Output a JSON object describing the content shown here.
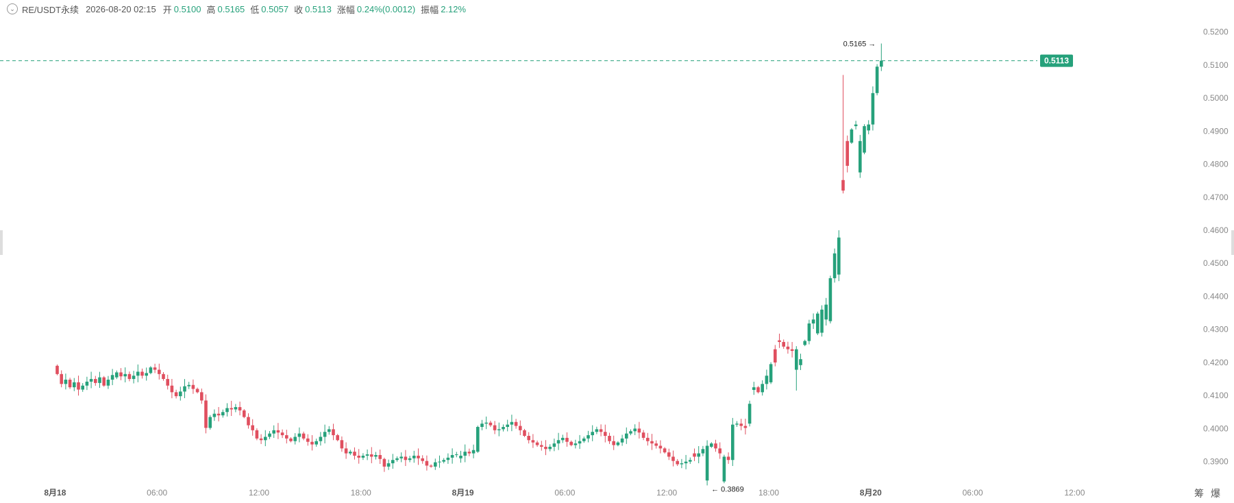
{
  "header": {
    "symbol": "RE/USDT永续",
    "datetime": "2026-08-20 02:15",
    "open_label": "开",
    "open": "0.5100",
    "high_label": "高",
    "high": "0.5165",
    "low_label": "低",
    "low": "0.5057",
    "close_label": "收",
    "close": "0.5113",
    "change_label": "涨幅",
    "change": "0.24%(0.0012)",
    "amplitude_label": "振幅",
    "amplitude": "2.12%"
  },
  "colors": {
    "up": "#26a17b",
    "down": "#e04f5f",
    "text": "#333333",
    "axis": "#888888"
  },
  "footer_icons": [
    "筹",
    "爆"
  ],
  "chart_data": {
    "type": "candlestick",
    "interval": "15m",
    "y_ticks": [
      "0.3900",
      "0.4000",
      "0.4100",
      "0.4200",
      "0.4300",
      "0.4400",
      "0.4500",
      "0.4600",
      "0.4700",
      "0.4800",
      "0.4900",
      "0.5000",
      "0.5100",
      "0.5200"
    ],
    "ylim": [
      0.3835,
      0.5222
    ],
    "x_ticks": [
      {
        "label": "8月18",
        "bold": true,
        "index": 0
      },
      {
        "label": "06:00",
        "bold": false,
        "index": 24
      },
      {
        "label": "12:00",
        "bold": false,
        "index": 48
      },
      {
        "label": "18:00",
        "bold": false,
        "index": 72
      },
      {
        "label": "8月19",
        "bold": true,
        "index": 96
      },
      {
        "label": "06:00",
        "bold": false,
        "index": 120
      },
      {
        "label": "12:00",
        "bold": false,
        "index": 144
      },
      {
        "label": "18:00",
        "bold": false,
        "index": 168
      },
      {
        "label": "8月20",
        "bold": true,
        "index": 192
      },
      {
        "label": "06:00",
        "bold": false,
        "index": 216
      },
      {
        "label": "12:00",
        "bold": false,
        "index": 240
      }
    ],
    "first_candle_index": -12,
    "current_price": "0.5113",
    "high_marker": "0.5165",
    "low_marker": "0.3869",
    "closes": [
      0.4165,
      0.4135,
      0.4148,
      0.4125,
      0.414,
      0.4118,
      0.413,
      0.4142,
      0.415,
      0.4138,
      0.4155,
      0.413,
      0.4148,
      0.4162,
      0.417,
      0.4158,
      0.4165,
      0.415,
      0.416,
      0.4172,
      0.416,
      0.4168,
      0.4185,
      0.4178,
      0.4165,
      0.415,
      0.413,
      0.411,
      0.4098,
      0.4112,
      0.4128,
      0.4132,
      0.412,
      0.411,
      0.4085,
      0.4002,
      0.4035,
      0.4045,
      0.404,
      0.405,
      0.4062,
      0.4058,
      0.4065,
      0.4055,
      0.4035,
      0.401,
      0.3995,
      0.397,
      0.3965,
      0.3975,
      0.3985,
      0.3995,
      0.3988,
      0.398,
      0.397,
      0.3962,
      0.3975,
      0.3985,
      0.397,
      0.396,
      0.3952,
      0.3962,
      0.3975,
      0.399,
      0.3998,
      0.398,
      0.3965,
      0.394,
      0.3925,
      0.393,
      0.3918,
      0.3912,
      0.3918,
      0.3922,
      0.3915,
      0.392,
      0.3908,
      0.3885,
      0.3895,
      0.3905,
      0.391,
      0.3915,
      0.3905,
      0.391,
      0.3918,
      0.391,
      0.3902,
      0.3888,
      0.3885,
      0.3898,
      0.39,
      0.3905,
      0.3912,
      0.392,
      0.3922,
      0.3918,
      0.393,
      0.3925,
      0.3935,
      0.4005,
      0.4015,
      0.4018,
      0.401,
      0.3995,
      0.3998,
      0.4005,
      0.4012,
      0.402,
      0.4008,
      0.3995,
      0.3978,
      0.3965,
      0.3958,
      0.395,
      0.3945,
      0.3938,
      0.3945,
      0.3955,
      0.3965,
      0.3972,
      0.396,
      0.395,
      0.3955,
      0.3962,
      0.397,
      0.398,
      0.399,
      0.3998,
      0.399,
      0.3978,
      0.3962,
      0.395,
      0.3958,
      0.397,
      0.3985,
      0.3992,
      0.4,
      0.3988,
      0.3972,
      0.3962,
      0.3955,
      0.3948,
      0.394,
      0.3928,
      0.3915,
      0.3902,
      0.3892,
      0.3895,
      0.39,
      0.3905,
      0.3915,
      0.3925,
      0.3938,
      0.3948,
      0.3955,
      0.394,
      0.3925,
      0.3915,
      0.3905,
      0.4012,
      0.4015,
      0.4008,
      0.4002,
      0.4075,
      0.4125,
      0.411,
      0.4135,
      0.416,
      0.4195,
      0.42,
      0.4262,
      0.4248,
      0.424,
      0.4235,
      0.424,
      0.421,
      0.4265,
      0.4318,
      0.433,
      0.4348,
      0.436,
      0.4375,
      0.4455,
      0.453,
      0.4578,
      0.472,
      0.4795,
      0.4905,
      0.492,
      0.487,
      0.4915,
      0.492,
      0.5015,
      0.5095,
      0.5113
    ],
    "delta_override": {
      "0": -0.0025,
      "14": 0.0015,
      "95": 0.0008,
      "98": 0.001,
      "99": 0.0075,
      "150": -0.001,
      "153": 0.0105,
      "154": 0.001,
      "157": 0.0075,
      "163": 0.006,
      "164": 0.0008,
      "168": 0.0055,
      "169": -0.004,
      "170": -0.0005,
      "174": 0.0062,
      "175": 0.0018,
      "176": 0.0012,
      "179": 0.006,
      "180": 0.007,
      "181": 0.0045,
      "182": 0.013,
      "184": 0.0112,
      "185": -0.0032,
      "186": -0.0075,
      "187": 0.004,
      "188": 0.0005,
      "189": 0.0095,
      "190": 0.008,
      "191": 0.0018
    }
  }
}
